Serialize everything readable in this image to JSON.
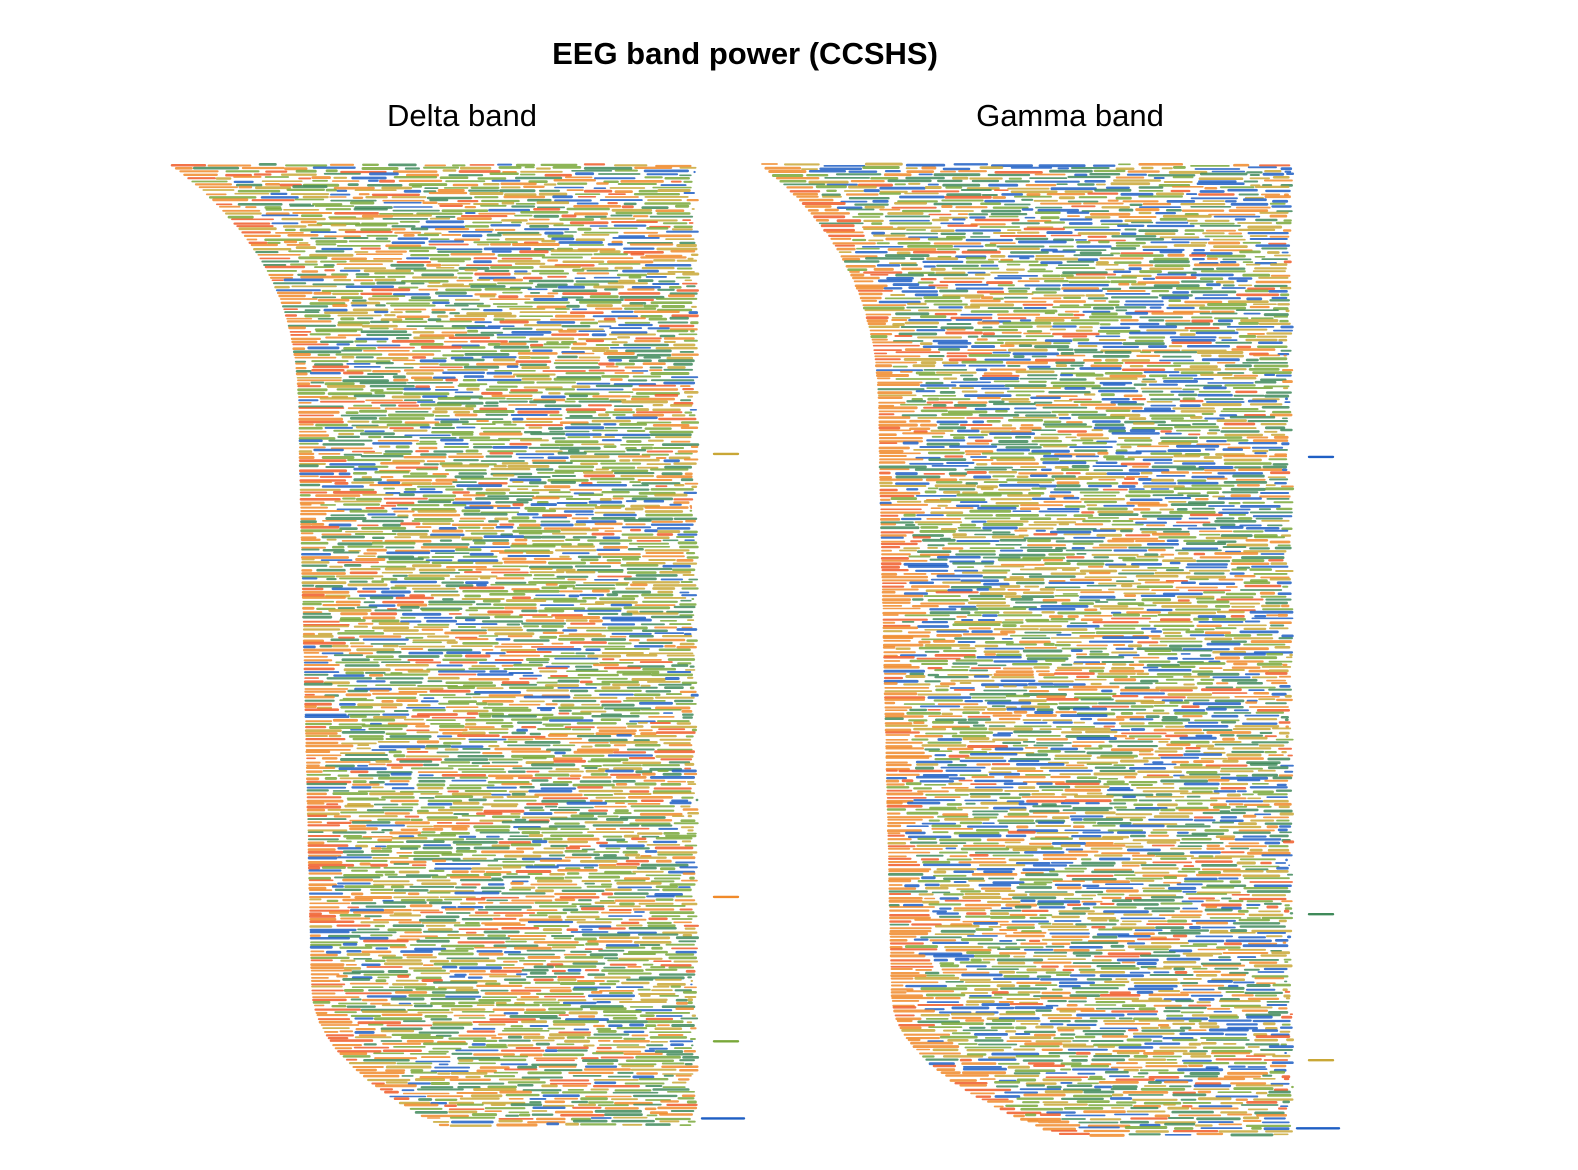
{
  "chart_data": {
    "type": "scatter",
    "title": "EEG band power (CCSHS)",
    "panels": [
      {
        "title": "Delta band",
        "color_scale": [
          "#1f5fc4",
          "#3f8a5a",
          "#79a83a",
          "#c9a736",
          "#f08a2a",
          "#f05a28"
        ],
        "color_weights": [
          0.12,
          0.18,
          0.27,
          0.18,
          0.17,
          0.08
        ],
        "edge_bias_orange": 0.55,
        "n_rows": 300,
        "onset_curve": "decreasing-then-increasing",
        "outlier_rows": [
          0.3,
          0.76,
          0.91,
          0.99
        ]
      },
      {
        "title": "Gamma band",
        "color_scale": [
          "#1f5fc4",
          "#3f8a5a",
          "#79a83a",
          "#c9a736",
          "#f08a2a",
          "#f05a28"
        ],
        "color_weights": [
          0.2,
          0.17,
          0.2,
          0.22,
          0.15,
          0.06
        ],
        "edge_bias_orange": 0.85,
        "n_rows": 300,
        "onset_curve": "decreasing-then-increasing",
        "outlier_rows": [
          0.3,
          0.77,
          0.92,
          0.99
        ]
      }
    ],
    "xlabel": "",
    "ylabel": "",
    "legend": "none",
    "grid": false,
    "axes_visible": false
  }
}
